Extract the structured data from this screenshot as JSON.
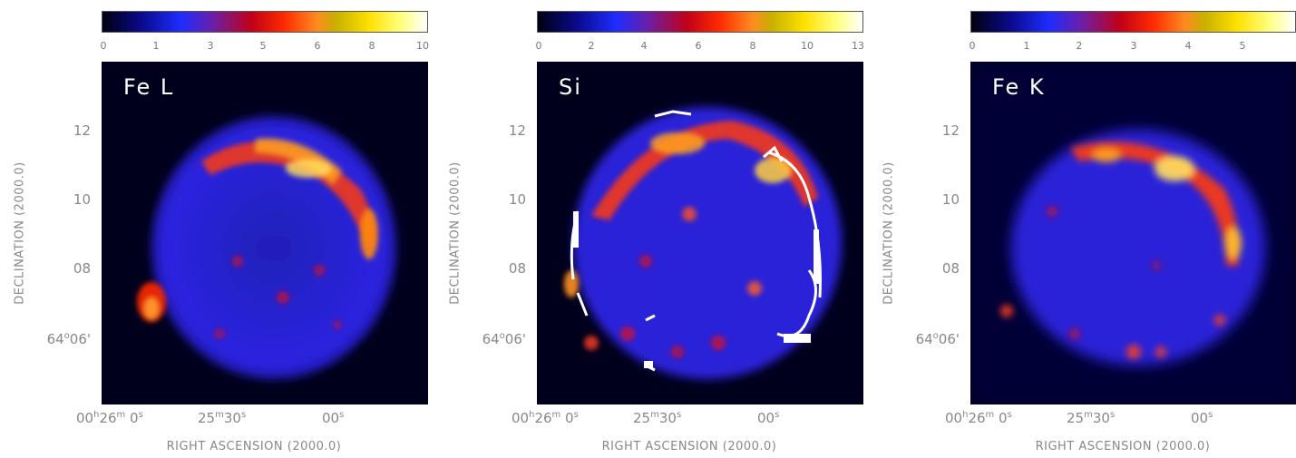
{
  "panels": [
    {
      "label": "Fe L",
      "colorbar_ticks": [
        "0",
        "1",
        "3",
        "5",
        "6",
        "8",
        "10"
      ],
      "y_ticks": [
        "12",
        "10",
        "08"
      ],
      "y_dec": "64",
      "y_dec_sup": "o",
      "y_dec_end": "06'",
      "y_label": "DECLINATION (2000.0)",
      "x_ticks": [
        {
          "a": "00",
          "a_sup": "h",
          "b": "26",
          "b_sup": "m",
          "c": " 0",
          "c_sup": "s"
        },
        {
          "a": "25",
          "a_sup": "m",
          "b": "30",
          "b_sup": "s"
        },
        {
          "a": "00",
          "a_sup": "s"
        }
      ],
      "x_label": "RIGHT ASCENSION (2000.0)"
    },
    {
      "label": "Si",
      "colorbar_ticks": [
        "0",
        "2",
        "4",
        "6",
        "8",
        "10",
        "13"
      ],
      "y_ticks": [
        "12",
        "10",
        "08"
      ],
      "y_dec": "64",
      "y_dec_sup": "o",
      "y_dec_end": "06'",
      "y_label": "DECLINATION (2000.0)",
      "x_ticks": [
        {
          "a": "00",
          "a_sup": "h",
          "b": "26",
          "b_sup": "m",
          "c": " 0",
          "c_sup": "s"
        },
        {
          "a": "25",
          "a_sup": "m",
          "b": "30",
          "b_sup": "s"
        },
        {
          "a": "00",
          "a_sup": "s"
        }
      ],
      "x_label": "RIGHT ASCENSION (2000.0)"
    },
    {
      "label": "Fe K",
      "colorbar_ticks": [
        "0",
        "1",
        "2",
        "3",
        "4",
        "5"
      ],
      "y_ticks": [
        "12",
        "10",
        "08"
      ],
      "y_dec": "64",
      "y_dec_sup": "o",
      "y_dec_end": "06'",
      "y_label": "DECLINATION (2000.0)",
      "x_ticks": [
        {
          "a": "00",
          "a_sup": "h",
          "b": "26",
          "b_sup": "m",
          "c": " 0",
          "c_sup": "s"
        },
        {
          "a": "25",
          "a_sup": "m",
          "b": "30",
          "b_sup": "s"
        },
        {
          "a": "00",
          "a_sup": "s"
        }
      ],
      "x_label": "RIGHT ASCENSION (2000.0)"
    }
  ],
  "colors": {
    "background": "#01001c",
    "shell": "#2a1fd0",
    "shell_bright": "#3a2cff",
    "hot": "#ff3300",
    "hotter": "#ff9a00",
    "hottest": "#ffff70",
    "contour": "#ffffff"
  }
}
